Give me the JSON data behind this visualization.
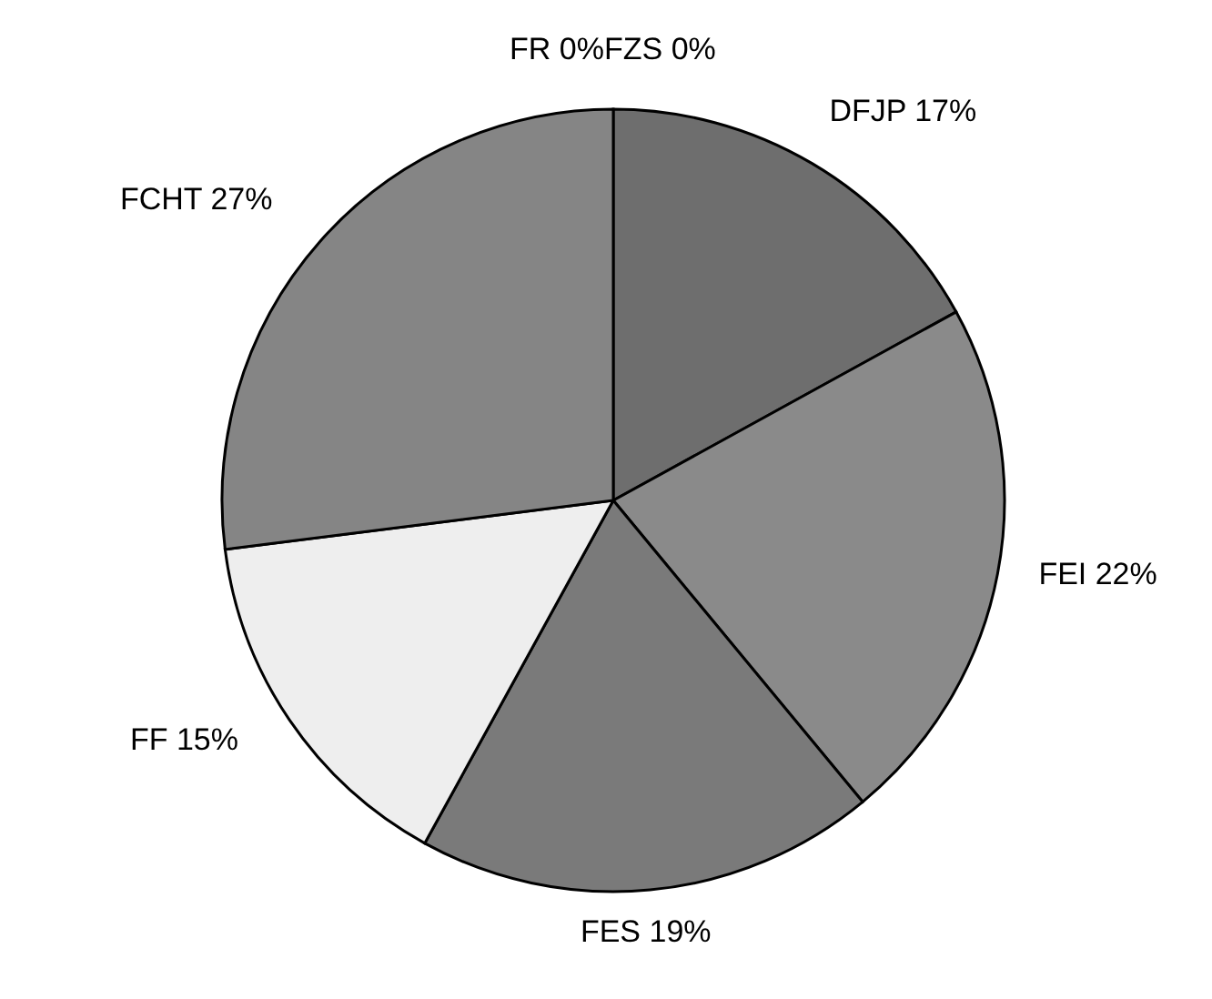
{
  "chart_data": {
    "type": "pie",
    "categories": [
      "FZS",
      "DFJP",
      "FEI",
      "FES",
      "FF",
      "FCHT",
      "FR"
    ],
    "values": [
      0,
      17,
      22,
      19,
      15,
      27,
      0
    ],
    "value_labels": [
      "0%",
      "17%",
      "22%",
      "19%",
      "15%",
      "27%",
      "0%"
    ],
    "colors": [
      "#9a9a9a",
      "#6e6e6e",
      "#8a8a8a",
      "#7a7a7a",
      "#eeeeee",
      "#858585",
      "#c8c8c8"
    ],
    "legend": false
  }
}
